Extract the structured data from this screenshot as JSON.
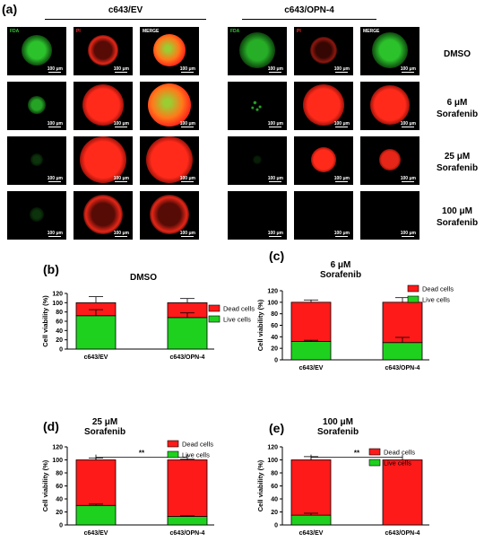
{
  "figure": {
    "panel_a_label": "(a)",
    "groups": [
      "c643/EV",
      "c643/OPN-4"
    ],
    "channels": [
      "FDA",
      "PI",
      "MERGE"
    ],
    "conditions": [
      {
        "line1": "DMSO",
        "line2": ""
      },
      {
        "line1": "6 μM",
        "line2": "Sorafenib"
      },
      {
        "line1": "25 μM",
        "line2": "Sorafenib"
      },
      {
        "line1": "100 μM",
        "line2": "Sorafenib"
      }
    ],
    "scale_bar": "100 μm"
  },
  "colors": {
    "live": "#1fd11f",
    "dead": "#ff1a1a",
    "fda": "#2ecc2e",
    "pi": "#ff2a1a"
  },
  "chart_data": [
    {
      "panel": "(b)",
      "type": "bar",
      "stacked": true,
      "title_line1": "DMSO",
      "title_line2": "",
      "categories": [
        "c643/EV",
        "c643/OPN-4"
      ],
      "ylabel": "Cell viability (%)",
      "ylim": [
        0,
        120
      ],
      "yticks": [
        "0",
        "20",
        "40",
        "60",
        "80",
        "100",
        "120"
      ],
      "significance": "",
      "series": [
        {
          "name": "Live cells",
          "values": [
            72,
            68
          ],
          "errors": [
            13,
            10
          ]
        },
        {
          "name": "Dead cells",
          "values": [
            28,
            32
          ],
          "errors": [
            13,
            9
          ]
        }
      ]
    },
    {
      "panel": "(c)",
      "type": "bar",
      "stacked": true,
      "title_line1": "6 μM",
      "title_line2": "Sorafenib",
      "categories": [
        "c643/EV",
        "c643/OPN-4"
      ],
      "ylabel": "Cell viability (%)",
      "ylim": [
        0,
        120
      ],
      "yticks": [
        "0",
        "20",
        "40",
        "60",
        "80",
        "100",
        "120"
      ],
      "significance": "",
      "series": [
        {
          "name": "Live cells",
          "values": [
            32,
            30
          ],
          "errors": [
            2,
            9
          ]
        },
        {
          "name": "Dead cells",
          "values": [
            68,
            70
          ],
          "errors": [
            4,
            8
          ]
        }
      ]
    },
    {
      "panel": "(d)",
      "type": "bar",
      "stacked": true,
      "title_line1": "25 μM",
      "title_line2": "Sorafenib",
      "categories": [
        "c643/EV",
        "c643/OPN-4"
      ],
      "ylabel": "Cell viability (%)",
      "ylim": [
        0,
        120
      ],
      "yticks": [
        "0",
        "20",
        "40",
        "60",
        "80",
        "100",
        "120"
      ],
      "significance": "**",
      "series": [
        {
          "name": "Live cells",
          "values": [
            30,
            13
          ],
          "errors": [
            2,
            1
          ]
        },
        {
          "name": "Dead cells",
          "values": [
            70,
            87
          ],
          "errors": [
            3,
            1
          ]
        }
      ]
    },
    {
      "panel": "(e)",
      "type": "bar",
      "stacked": true,
      "title_line1": "100 μM",
      "title_line2": "Sorafenib",
      "categories": [
        "c643/EV",
        "c643/OPN-4"
      ],
      "ylabel": "Cell viability (%)",
      "ylim": [
        0,
        120
      ],
      "yticks": [
        "0",
        "20",
        "40",
        "60",
        "80",
        "100",
        "120"
      ],
      "significance": "**",
      "series": [
        {
          "name": "Live cells",
          "values": [
            15,
            0
          ],
          "errors": [
            3,
            0
          ]
        },
        {
          "name": "Dead cells",
          "values": [
            85,
            100
          ],
          "errors": [
            5,
            0
          ]
        }
      ]
    }
  ]
}
